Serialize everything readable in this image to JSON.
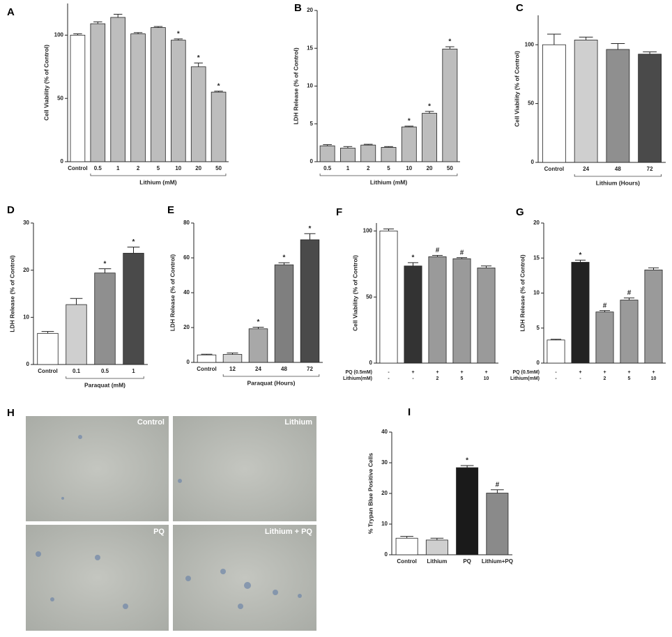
{
  "chart_data": [
    {
      "type": "bar",
      "panel": "A",
      "ylabel": "Cell Viability (% of Control)",
      "categories": [
        "Control",
        "0.5",
        "1",
        "2",
        "5",
        "10",
        "20",
        "50"
      ],
      "values": [
        100,
        109,
        114,
        101,
        106,
        96,
        75,
        55
      ],
      "errors": [
        1,
        1.5,
        2.5,
        1,
        0.8,
        1,
        3,
        0.7
      ],
      "annotations": [
        null,
        null,
        null,
        null,
        null,
        "*",
        "*",
        "*"
      ],
      "colors": [
        "#ffffff",
        "#bdbdbd",
        "#bdbdbd",
        "#bdbdbd",
        "#bdbdbd",
        "#bdbdbd",
        "#bdbdbd",
        "#bdbdbd"
      ],
      "group_label": "Lithium (mM)",
      "ylim": [
        0,
        125
      ],
      "yticks": [
        0,
        50,
        100
      ]
    },
    {
      "type": "bar",
      "panel": "B",
      "ylabel": "LDH Release (% of Control)",
      "categories": [
        "0.5",
        "1",
        "2",
        "5",
        "10",
        "20",
        "50"
      ],
      "values": [
        2.1,
        1.8,
        2.2,
        1.9,
        4.6,
        6.4,
        14.9
      ],
      "errors": [
        0.15,
        0.2,
        0.1,
        0.1,
        0.1,
        0.25,
        0.3
      ],
      "annotations": [
        null,
        null,
        null,
        null,
        "*",
        "*",
        "*"
      ],
      "colors": [
        "#bdbdbd",
        "#bdbdbd",
        "#bdbdbd",
        "#bdbdbd",
        "#bdbdbd",
        "#bdbdbd",
        "#bdbdbd"
      ],
      "group_label": "Lithium (mM)",
      "ylim": [
        0,
        20
      ],
      "yticks": [
        0,
        5,
        10,
        15,
        20
      ]
    },
    {
      "type": "bar",
      "panel": "C",
      "ylabel": "Cell Viability (% of Control)",
      "categories": [
        "Control",
        "24",
        "48",
        "72"
      ],
      "values": [
        100,
        104,
        96,
        92
      ],
      "errors": [
        9,
        2.5,
        5,
        2
      ],
      "annotations": [
        null,
        null,
        null,
        null
      ],
      "colors": [
        "#ffffff",
        "#cfcfcf",
        "#8f8f8f",
        "#4a4a4a"
      ],
      "group_label": "Lithium (Hours)",
      "ylim": [
        0,
        125
      ],
      "yticks": [
        0,
        50,
        100
      ]
    },
    {
      "type": "bar",
      "panel": "D",
      "ylabel": "LDH Release (% of Control)",
      "categories": [
        "Control",
        "0.1",
        "0.5",
        "1"
      ],
      "values": [
        6.6,
        12.7,
        19.4,
        23.6
      ],
      "errors": [
        0.4,
        1.3,
        0.9,
        1.3
      ],
      "annotations": [
        null,
        null,
        "*",
        "*"
      ],
      "colors": [
        "#ffffff",
        "#cfcfcf",
        "#8f8f8f",
        "#4a4a4a"
      ],
      "group_label": "Paraquat (mM)",
      "ylim": [
        0,
        30
      ],
      "yticks": [
        0,
        10,
        20,
        30
      ]
    },
    {
      "type": "bar",
      "panel": "E",
      "ylabel": "LDH Release (% of Control)",
      "categories": [
        "Control",
        "12",
        "24",
        "48",
        "72"
      ],
      "values": [
        4.3,
        4.6,
        19.3,
        56,
        70.4
      ],
      "errors": [
        0.4,
        0.8,
        0.9,
        1.2,
        3.5
      ],
      "annotations": [
        null,
        null,
        "*",
        "*",
        "*"
      ],
      "colors": [
        "#ffffff",
        "#d4d4d4",
        "#a8a8a8",
        "#7f7f7f",
        "#4a4a4a"
      ],
      "group_label": "Paraquat (Hours)",
      "ylim": [
        0,
        80
      ],
      "yticks": [
        0,
        20,
        40,
        60,
        80
      ]
    },
    {
      "type": "bar",
      "panel": "F",
      "ylabel": "Cell Viability (% of Control)",
      "rows": [
        {
          "label": "PQ (0.5mM)",
          "values": [
            "-",
            "+",
            "+",
            "+",
            "+"
          ]
        },
        {
          "label": "Lithium(mM)",
          "values": [
            "-",
            "-",
            "2",
            "5",
            "10"
          ]
        }
      ],
      "values": [
        100,
        73.5,
        80.5,
        79,
        72
      ],
      "errors": [
        1.5,
        2.5,
        1,
        0.8,
        1.5
      ],
      "annotations": [
        null,
        "*",
        "#",
        "#",
        null
      ],
      "colors": [
        "#ffffff",
        "#333333",
        "#9a9a9a",
        "#9a9a9a",
        "#9a9a9a"
      ],
      "ylim": [
        0,
        106
      ],
      "yticks": [
        0,
        50,
        100
      ]
    },
    {
      "type": "bar",
      "panel": "G",
      "ylabel": "LDH Release (% of Control)",
      "rows": [
        {
          "label": "PQ (0.5mM)",
          "values": [
            "-",
            "+",
            "+",
            "+",
            "+"
          ]
        },
        {
          "label": "Lithium(mM)",
          "values": [
            "-",
            "-",
            "2",
            "5",
            "10"
          ]
        }
      ],
      "values": [
        3.3,
        14.4,
        7.3,
        9.0,
        13.3
      ],
      "errors": [
        0.1,
        0.3,
        0.2,
        0.3,
        0.3
      ],
      "annotations": [
        null,
        "*",
        "#",
        "#",
        null
      ],
      "colors": [
        "#ffffff",
        "#222222",
        "#9a9a9a",
        "#9a9a9a",
        "#9a9a9a"
      ],
      "ylim": [
        0,
        20
      ],
      "yticks": [
        0,
        5,
        10,
        15,
        20
      ]
    },
    {
      "type": "bar",
      "panel": "I",
      "ylabel": "% Trypan Blue Positive Cells",
      "categories": [
        "Control",
        "Lithium",
        "PQ",
        "Lithium+PQ"
      ],
      "values": [
        5.4,
        4.8,
        28.4,
        20.1
      ],
      "errors": [
        0.6,
        0.6,
        0.7,
        1.1
      ],
      "annotations": [
        null,
        null,
        "*",
        "#"
      ],
      "colors": [
        "#ffffff",
        "#cfcfcf",
        "#1a1a1a",
        "#8a8a8a"
      ],
      "ylim": [
        0,
        40
      ],
      "yticks": [
        0,
        10,
        20,
        30,
        40
      ]
    }
  ],
  "micrographs": {
    "panel": "H",
    "labels": [
      "Control",
      "Lithium",
      "PQ",
      "Lithium + PQ"
    ]
  }
}
